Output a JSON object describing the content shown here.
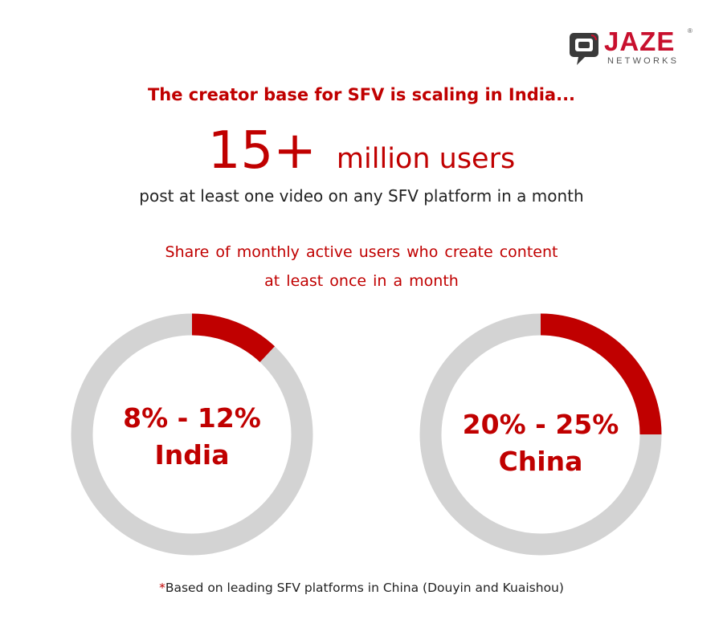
{
  "brand": {
    "name": "JAZE",
    "subtitle": "NETWORKS",
    "registered_mark": "®",
    "accent": "#c8102e"
  },
  "headline": "The creator base for SFV is scaling in India...",
  "stat": {
    "number": "15+",
    "unit": "million users",
    "description": "post at least one video on any SFV platform in a month"
  },
  "chart_data": {
    "type": "pie",
    "title_lines": [
      "Share of monthly active users who create content",
      "at least once in a month"
    ],
    "charts": [
      {
        "country": "India",
        "label": "8% - 12%",
        "range": [
          8,
          12
        ],
        "filled_percent": 12
      },
      {
        "country": "China",
        "label": "20% - 25%",
        "range": [
          20,
          25
        ],
        "filled_percent": 25
      }
    ],
    "colors": {
      "filled": "#c00000",
      "remaining": "#d3d3d3"
    }
  },
  "footnote": {
    "marker": "*",
    "text": "Based on leading SFV platforms in China (Douyin and Kuaishou)"
  }
}
